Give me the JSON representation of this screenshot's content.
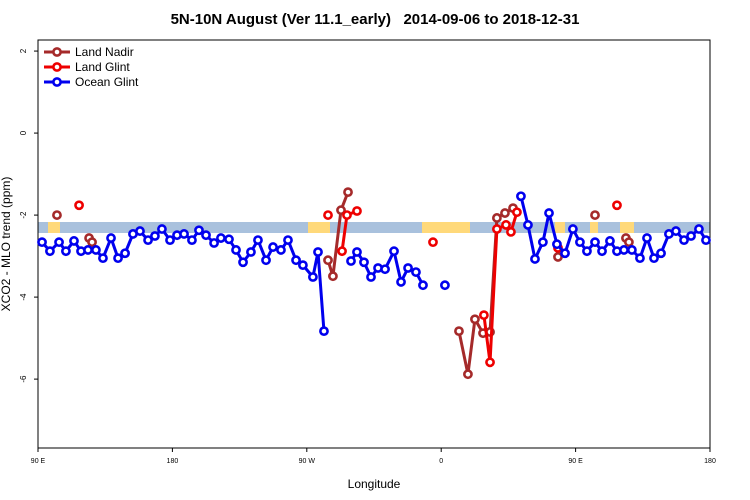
{
  "chart_data": {
    "type": "line",
    "title": "5N-10N August (Ver 11.1_early)   2014-09-06 to 2018-12-31",
    "x_label": "Longitude",
    "y_label": "XCO2 - MLO trend (ppm)",
    "xlim": [
      90,
      540
    ],
    "ylim": [
      -7.68,
      2.27
    ],
    "xticks": [
      {
        "value": 90,
        "label": "90 E"
      },
      180,
      {
        "value": 270,
        "label": "90 W"
      },
      {
        "value": 360,
        "label": "0"
      },
      {
        "value": 450,
        "label": "90 E"
      },
      {
        "value": 540,
        "label": "180"
      }
    ],
    "yticks": [
      2,
      0,
      -2,
      -4,
      -6
    ],
    "legend": "top-left",
    "series": [
      {
        "name": "Land Nadir",
        "color": "#a52a2a",
        "x": [
          102.7,
          null,
          124.2,
          126.2,
          null,
          284.2,
          287.5,
          292.9,
          297.6,
          null,
          371.9,
          377.9,
          382.6,
          388.0,
          392.7,
          397.3,
          402.7,
          408.1,
          null,
          438.2,
          null,
          463.0,
          null,
          483.7,
          485.7
        ],
        "values": [
          -2.0,
          null,
          -2.56,
          -2.66,
          null,
          -3.1,
          -3.49,
          -1.88,
          -1.44,
          null,
          -4.83,
          -5.88,
          -4.54,
          -4.88,
          -4.85,
          -2.07,
          -1.95,
          -1.83,
          null,
          -3.02,
          null,
          -2.0,
          null,
          -2.56,
          -2.66
        ]
      },
      {
        "name": "Land Glint",
        "color": "#ee0000",
        "x": [
          117.5,
          null,
          284.2,
          null,
          293.6,
          296.9,
          303.6,
          null,
          354.5,
          null,
          388.6,
          392.7,
          397.3,
          403.4,
          406.7,
          410.7,
          null,
          438.2,
          null,
          477.7
        ],
        "values": [
          -1.76,
          null,
          -2.0,
          null,
          -2.88,
          -2.0,
          -1.9,
          null,
          -2.66,
          null,
          -4.44,
          -5.59,
          -2.34,
          -2.24,
          -2.41,
          -1.93,
          null,
          -2.8,
          null,
          -1.76
        ]
      },
      {
        "name": "Ocean Glint",
        "color": "#0000ee",
        "x": [
          92.7,
          98.0,
          104.1,
          108.7,
          114.1,
          118.8,
          123.5,
          128.8,
          133.5,
          138.9,
          143.6,
          148.3,
          153.6,
          158.3,
          163.7,
          168.3,
          173.0,
          178.4,
          183.1,
          187.8,
          193.1,
          197.8,
          202.5,
          207.9,
          212.5,
          217.9,
          222.6,
          227.3,
          232.6,
          237.3,
          242.7,
          247.4,
          252.7,
          257.4,
          262.8,
          267.4,
          274.1,
          277.5,
          281.5,
          null,
          299.6,
          303.6,
          308.3,
          313.0,
          317.7,
          322.4,
          328.4,
          333.1,
          337.8,
          343.1,
          347.8,
          null,
          362.5,
          null,
          413.4,
          418.1,
          422.8,
          428.1,
          432.2,
          437.5,
          442.9,
          448.2,
          452.9,
          457.6,
          463.0,
          467.7,
          473.0,
          477.7,
          482.4,
          487.7,
          493.1,
          497.8,
          502.5,
          507.2,
          512.5,
          517.2,
          522.6,
          527.3,
          532.6,
          537.3
        ],
        "values": [
          -2.66,
          -2.88,
          -2.66,
          -2.88,
          -2.63,
          -2.88,
          -2.85,
          -2.85,
          -3.05,
          -2.56,
          -3.05,
          -2.93,
          -2.46,
          -2.39,
          -2.61,
          -2.51,
          -2.34,
          -2.61,
          -2.49,
          -2.46,
          -2.61,
          -2.37,
          -2.49,
          -2.68,
          -2.56,
          -2.59,
          -2.85,
          -3.15,
          -2.9,
          -2.61,
          -3.1,
          -2.78,
          -2.85,
          -2.61,
          -3.1,
          -3.22,
          -3.51,
          -2.9,
          -4.83,
          null,
          -3.12,
          -2.9,
          -3.15,
          -3.51,
          -3.29,
          -3.32,
          -2.88,
          -3.63,
          -3.29,
          -3.39,
          -3.71,
          null,
          -3.71,
          null,
          -1.54,
          -2.24,
          -3.07,
          -2.66,
          -1.95,
          -2.71,
          -2.93,
          -2.34,
          -2.66,
          -2.88,
          -2.66,
          -2.88,
          -2.63,
          -2.88,
          -2.85,
          -2.85,
          -3.05,
          -2.56,
          -3.05,
          -2.93,
          -2.46,
          -2.39,
          -2.61,
          -2.51,
          -2.34,
          -2.61
        ]
      }
    ]
  }
}
